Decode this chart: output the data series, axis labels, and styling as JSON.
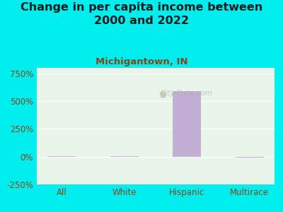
{
  "title": "Change in per capita income between\n2000 and 2022",
  "subtitle": "Michigantown, IN",
  "categories": [
    "All",
    "White",
    "Hispanic",
    "Multirace"
  ],
  "values": [
    3,
    5,
    590,
    -5
  ],
  "bar_color": "#c4afd4",
  "background_outer": "#00eeee",
  "background_plot": "#e8f5e8",
  "title_fontsize": 11.5,
  "subtitle_fontsize": 9.5,
  "subtitle_color": "#8b4513",
  "title_color": "#1a1a1a",
  "tick_color": "#8b4513",
  "ylim": [
    -250,
    800
  ],
  "yticks": [
    -250,
    0,
    250,
    500,
    750
  ],
  "watermark": "City-Data.com"
}
